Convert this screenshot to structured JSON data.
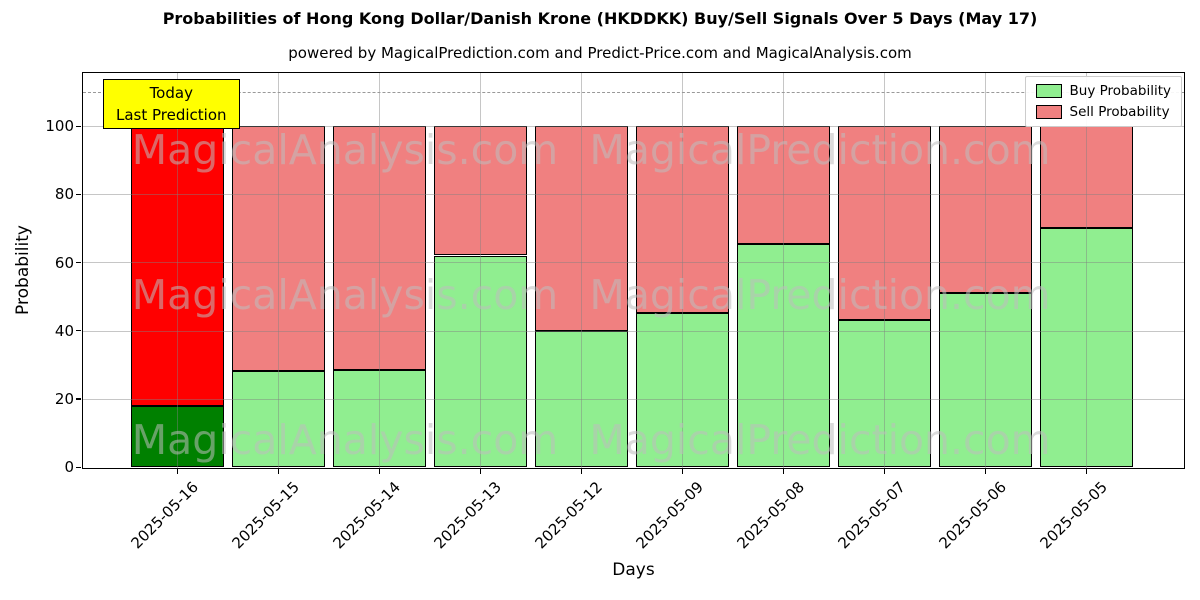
{
  "chart_data": {
    "type": "bar",
    "stacked": true,
    "title": "Probabilities of Hong Kong Dollar/Danish Krone (HKDDKK) Buy/Sell Signals Over 5 Days (May 17)",
    "subtitle": "powered by MagicalPrediction.com and Predict-Price.com and MagicalAnalysis.com",
    "xlabel": "Days",
    "ylabel": "Probability",
    "categories": [
      "2025-05-16",
      "2025-05-15",
      "2025-05-14",
      "2025-05-13",
      "2025-05-12",
      "2025-05-09",
      "2025-05-08",
      "2025-05-07",
      "2025-05-06",
      "2025-05-05"
    ],
    "series": [
      {
        "name": "Buy Probability",
        "values": [
          18,
          28,
          28.5,
          62,
          40,
          45,
          65.5,
          43,
          51,
          70
        ],
        "color": "#90EE90",
        "today_color": "#008000"
      },
      {
        "name": "Sell Probability",
        "values": [
          82,
          72,
          71.5,
          38,
          60,
          55,
          34.5,
          57,
          49,
          30
        ],
        "color": "#F08080",
        "today_color": "#FF0000"
      }
    ],
    "yticks": [
      0,
      20,
      40,
      60,
      80,
      100
    ],
    "ylim": [
      0,
      115.5
    ],
    "dashed_line_y": 110,
    "grid": true,
    "legend_position": "upper right",
    "bar_edge_color": "#000000"
  },
  "annotation": {
    "line1": "Today",
    "line2": "Last Prediction",
    "bg_color": "#FFFF00"
  },
  "watermarks": {
    "left_text": "MagicalAnalysis.com",
    "right_text": "MagicalPrediction.com",
    "rows": 3,
    "color": "#cccccc"
  }
}
